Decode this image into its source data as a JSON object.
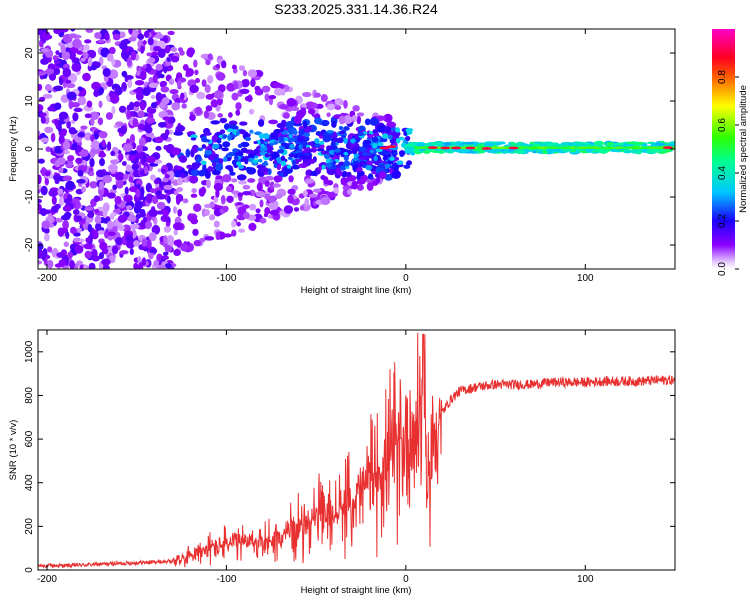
{
  "title": "S233.2025.331.14.36.R24",
  "colors": {
    "line": "#e83030",
    "axis": "#000000",
    "background": "#ffffff"
  },
  "chart_data": [
    {
      "type": "heatmap",
      "name": "spectrogram",
      "xlabel": "Height of straight line (km)",
      "ylabel": "Frequency (Hz)",
      "xlim": [
        -205,
        150
      ],
      "ylim": [
        -25,
        25
      ],
      "xticks": [
        -200,
        -100,
        0,
        100
      ],
      "yticks": [
        -20,
        -10,
        0,
        10,
        20
      ],
      "colorbar": {
        "label": "Normalized spectral amplitude",
        "range": [
          0,
          1
        ],
        "ticks": [
          "0.0",
          "0.2",
          "0.4",
          "0.6",
          "0.8"
        ],
        "tick_values": [
          0.0,
          0.2,
          0.4,
          0.6,
          0.8
        ],
        "colormap": "rainbow (white-violet-blue-cyan-green-yellow-red-magenta)"
      }
    },
    {
      "type": "line",
      "name": "snr",
      "xlabel": "Height of straight line (km)",
      "ylabel": "SNR (10 * v/v)",
      "xlim": [
        -205,
        150
      ],
      "ylim": [
        0,
        1100
      ],
      "xticks": [
        -200,
        -100,
        0,
        100
      ],
      "yticks": [
        0,
        200,
        400,
        600,
        800,
        1000
      ],
      "series": [
        {
          "name": "SNR",
          "x": [
            -205,
            -190,
            -175,
            -160,
            -145,
            -130,
            -120,
            -110,
            -100,
            -90,
            -80,
            -70,
            -60,
            -50,
            -40,
            -30,
            -25,
            -20,
            -15,
            -10,
            -5,
            0,
            5,
            10,
            12,
            15,
            20,
            25,
            30,
            40,
            50,
            60,
            70,
            80,
            90,
            100,
            110,
            120,
            130,
            140,
            150
          ],
          "values": [
            20,
            20,
            25,
            30,
            35,
            40,
            70,
            100,
            120,
            120,
            130,
            150,
            200,
            240,
            250,
            310,
            350,
            420,
            460,
            500,
            580,
            600,
            650,
            800,
            300,
            620,
            720,
            780,
            820,
            840,
            850,
            850,
            850,
            860,
            860,
            860,
            865,
            865,
            865,
            870,
            870
          ]
        }
      ]
    }
  ]
}
